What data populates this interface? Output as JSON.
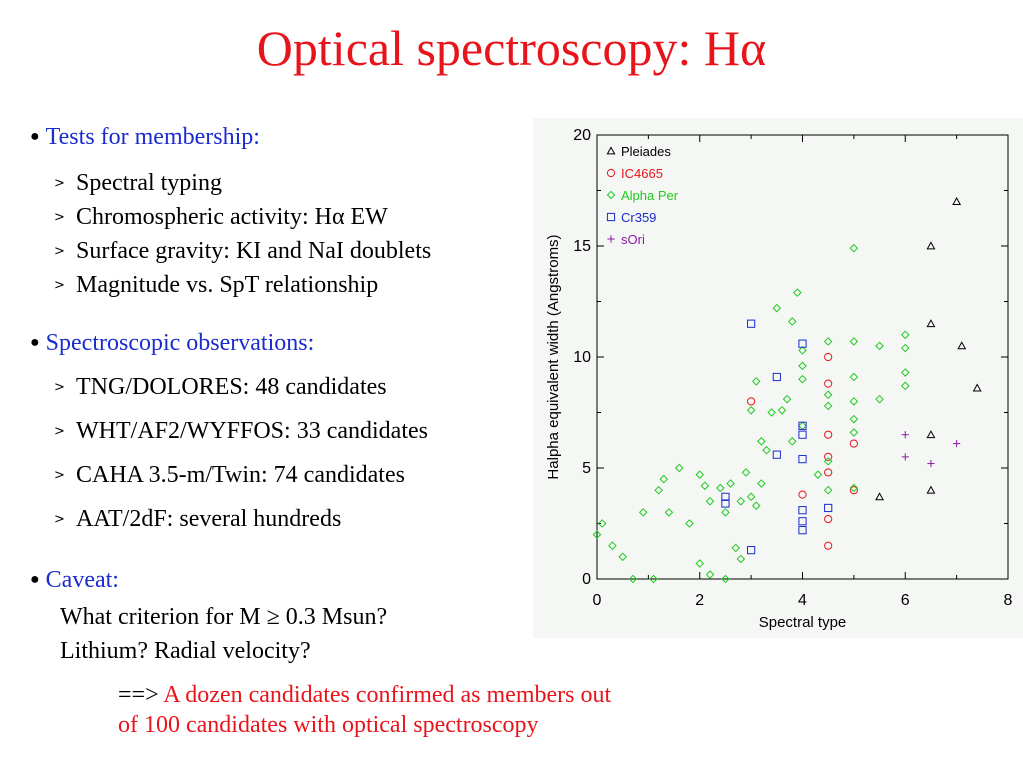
{
  "title": "Optical spectroscopy: Hα",
  "sections": [
    {
      "heading": "Tests for membership:",
      "items": [
        "Spectral typing",
        "Chromospheric activity: Hα EW",
        "Surface gravity: KI and NaI doublets",
        "Magnitude vs. SpT relationship"
      ]
    },
    {
      "heading": "Spectroscopic observations:",
      "items": [
        "TNG/DOLORES: 48 candidates",
        "WHT/AF2/WYFFOS: 33 candidates",
        "CAHA 3.5-m/Twin: 74 candidates",
        "AAT/2dF: several hundreds"
      ]
    },
    {
      "heading": "Caveat:",
      "lines": [
        "What criterion for M ≥ 0.3 Msun?",
        "Lithium? Radial velocity?"
      ]
    }
  ],
  "conclusion": {
    "arrow": "==>",
    "line1": " A dozen candidates confirmed as members out",
    "line2": "of 100 candidates with optical spectroscopy"
  },
  "colors": {
    "title": "#e8141b",
    "heading": "#1a2bd0",
    "conclusion": "#e8141b"
  },
  "chart_data": {
    "type": "scatter",
    "xlabel": "Spectral type",
    "ylabel": "Halpha equivalent width (Angstroms)",
    "xlim": [
      0,
      8
    ],
    "ylim": [
      0,
      20
    ],
    "xticks": [
      0,
      2,
      4,
      6,
      8
    ],
    "yticks": [
      0,
      5,
      10,
      15,
      20
    ],
    "grid": false,
    "legend_position": "top-left",
    "series": [
      {
        "name": "Pleiades",
        "marker": "triangle",
        "color": "#000000",
        "points": [
          [
            7.0,
            17.0
          ],
          [
            6.5,
            15.0
          ],
          [
            6.5,
            11.5
          ],
          [
            7.1,
            10.5
          ],
          [
            7.4,
            8.6
          ],
          [
            6.5,
            6.5
          ],
          [
            5.5,
            3.7
          ],
          [
            6.5,
            4.0
          ]
        ]
      },
      {
        "name": "IC4665",
        "marker": "circle",
        "color": "#e8141b",
        "points": [
          [
            3.0,
            8.0
          ],
          [
            4.5,
            10.0
          ],
          [
            4.5,
            8.8
          ],
          [
            4.5,
            6.5
          ],
          [
            4.5,
            5.5
          ],
          [
            4.5,
            4.8
          ],
          [
            5.0,
            6.1
          ],
          [
            5.0,
            4.0
          ],
          [
            4.0,
            3.8
          ],
          [
            4.5,
            2.7
          ],
          [
            4.5,
            1.5
          ]
        ]
      },
      {
        "name": "Alpha Per",
        "marker": "diamond",
        "color": "#22c922",
        "points": [
          [
            0.0,
            2.0
          ],
          [
            0.1,
            2.5
          ],
          [
            0.3,
            1.5
          ],
          [
            0.5,
            1.0
          ],
          [
            0.7,
            0.0
          ],
          [
            0.9,
            3.0
          ],
          [
            1.1,
            0.0
          ],
          [
            1.2,
            4.0
          ],
          [
            1.3,
            4.5
          ],
          [
            1.4,
            3.0
          ],
          [
            1.6,
            5.0
          ],
          [
            1.8,
            2.5
          ],
          [
            2.0,
            4.7
          ],
          [
            2.1,
            4.2
          ],
          [
            2.2,
            3.5
          ],
          [
            2.4,
            4.1
          ],
          [
            2.5,
            3.0
          ],
          [
            2.6,
            4.3
          ],
          [
            2.8,
            3.5
          ],
          [
            2.9,
            4.8
          ],
          [
            3.0,
            7.6
          ],
          [
            3.1,
            8.9
          ],
          [
            3.2,
            6.2
          ],
          [
            3.3,
            5.8
          ],
          [
            3.4,
            7.5
          ],
          [
            3.5,
            12.2
          ],
          [
            3.6,
            7.6
          ],
          [
            3.7,
            8.1
          ],
          [
            3.8,
            11.6
          ],
          [
            3.9,
            12.9
          ],
          [
            3.8,
            6.2
          ],
          [
            4.0,
            10.3
          ],
          [
            4.0,
            9.6
          ],
          [
            4.0,
            9.0
          ],
          [
            4.0,
            6.9
          ],
          [
            4.3,
            4.7
          ],
          [
            4.5,
            10.7
          ],
          [
            4.5,
            8.3
          ],
          [
            4.5,
            7.8
          ],
          [
            4.5,
            5.3
          ],
          [
            4.5,
            4.0
          ],
          [
            5.0,
            14.9
          ],
          [
            5.0,
            10.7
          ],
          [
            5.0,
            9.1
          ],
          [
            5.0,
            8.0
          ],
          [
            5.0,
            7.2
          ],
          [
            5.0,
            6.6
          ],
          [
            5.0,
            4.1
          ],
          [
            5.5,
            10.5
          ],
          [
            5.5,
            8.1
          ],
          [
            6.0,
            11.0
          ],
          [
            6.0,
            10.4
          ],
          [
            6.0,
            9.3
          ],
          [
            6.0,
            8.7
          ],
          [
            2.0,
            0.7
          ],
          [
            2.2,
            0.2
          ],
          [
            2.5,
            0.0
          ],
          [
            2.7,
            1.4
          ],
          [
            2.8,
            0.9
          ],
          [
            3.0,
            3.7
          ],
          [
            3.1,
            3.3
          ],
          [
            3.2,
            4.3
          ]
        ]
      },
      {
        "name": "Cr359",
        "marker": "square",
        "color": "#1a2bd0",
        "points": [
          [
            3.0,
            11.5
          ],
          [
            4.0,
            10.6
          ],
          [
            3.5,
            9.1
          ],
          [
            4.0,
            6.9
          ],
          [
            4.0,
            6.5
          ],
          [
            3.5,
            5.6
          ],
          [
            4.0,
            5.4
          ],
          [
            2.5,
            3.7
          ],
          [
            2.5,
            3.4
          ],
          [
            4.0,
            3.1
          ],
          [
            4.5,
            3.2
          ],
          [
            4.0,
            2.6
          ],
          [
            4.0,
            2.2
          ],
          [
            3.0,
            1.3
          ]
        ]
      },
      {
        "name": "sOri",
        "marker": "plus",
        "color": "#8a1aa0",
        "points": [
          [
            6.0,
            6.5
          ],
          [
            7.0,
            6.1
          ],
          [
            6.0,
            5.5
          ],
          [
            6.5,
            5.2
          ]
        ]
      }
    ]
  }
}
